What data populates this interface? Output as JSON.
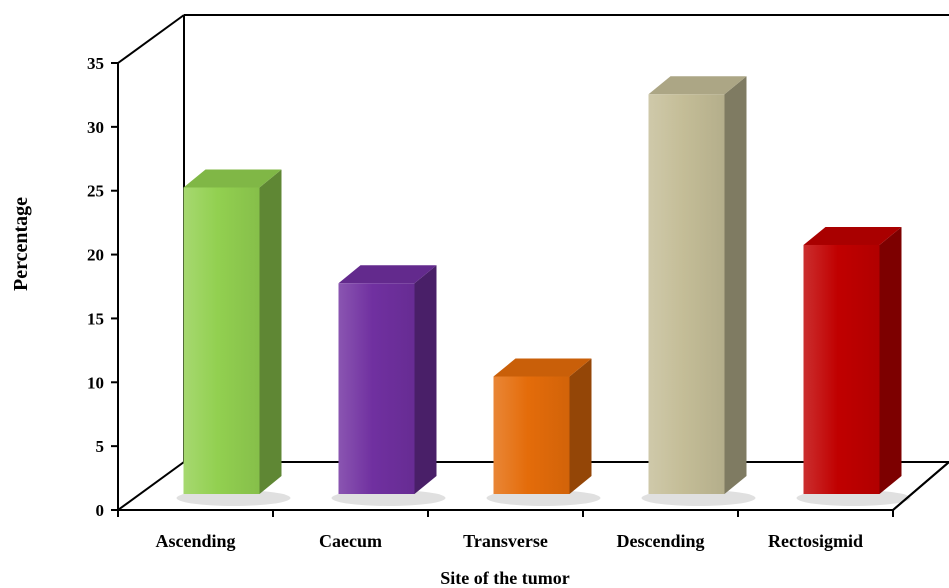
{
  "chart_data": {
    "type": "bar",
    "categories": [
      "Ascending",
      "Caecum",
      "Transverse",
      "Descending",
      "Rectosigmid"
    ],
    "values": [
      24,
      16.5,
      9.2,
      31.3,
      19.5
    ],
    "colors": [
      "#92d050",
      "#7030a0",
      "#e46c0a",
      "#c4bd97",
      "#c00000"
    ],
    "title": "",
    "xlabel": "Site of the tumor",
    "ylabel": "Percentage",
    "ylim": [
      0,
      35
    ],
    "yticks": [
      0,
      5,
      10,
      15,
      20,
      25,
      30,
      35
    ],
    "grid": false,
    "legend": "none",
    "style": "3d-column"
  }
}
